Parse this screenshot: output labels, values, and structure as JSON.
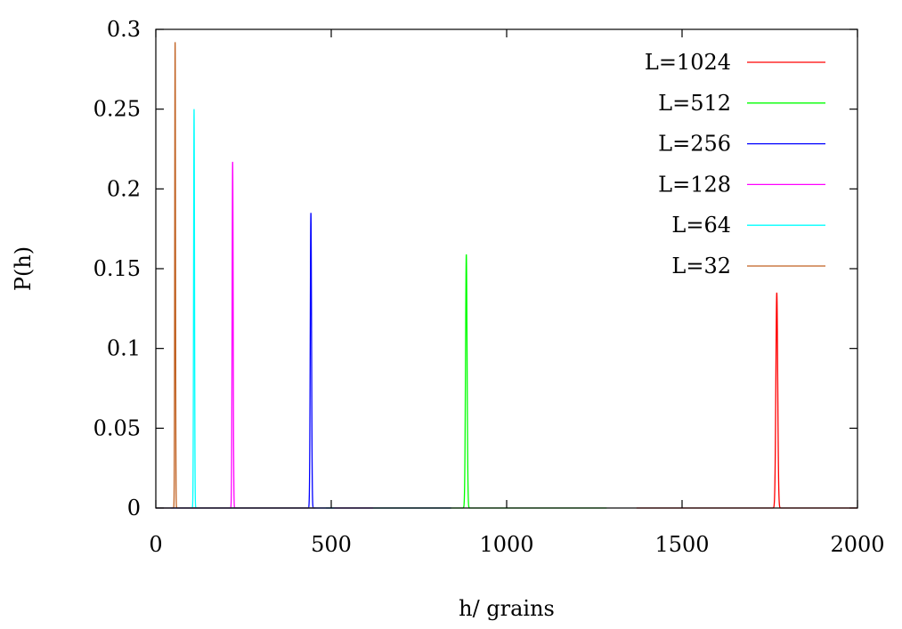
{
  "chart_data": {
    "type": "line",
    "title": "",
    "xlabel": "h/ grains",
    "ylabel": "P(h)",
    "xlim": [
      0,
      2000
    ],
    "ylim": [
      0,
      0.3
    ],
    "xticks": [
      "0",
      "500",
      "1000",
      "1500",
      "2000"
    ],
    "yticks": [
      "0",
      "0.05",
      "0.1",
      "0.15",
      "0.2",
      "0.25",
      "0.3"
    ],
    "grid": false,
    "legend_position": "top-right",
    "series": [
      {
        "name": "L=1024",
        "color": "#ff0000",
        "peak_x": 1770,
        "peak_y": 0.135,
        "width": 2.6
      },
      {
        "name": "L=512",
        "color": "#00ff00",
        "peak_x": 885,
        "peak_y": 0.159,
        "width": 2.2
      },
      {
        "name": "L=256",
        "color": "#0000ff",
        "peak_x": 442,
        "peak_y": 0.185,
        "width": 1.8
      },
      {
        "name": "L=128",
        "color": "#ff00ff",
        "peak_x": 219,
        "peak_y": 0.217,
        "width": 1.5
      },
      {
        "name": "L=64",
        "color": "#00ffff",
        "peak_x": 109,
        "peak_y": 0.25,
        "width": 1.3
      },
      {
        "name": "L=32",
        "color": "#c06020",
        "peak_x": 55,
        "peak_y": 0.292,
        "width": 1.1
      }
    ]
  }
}
